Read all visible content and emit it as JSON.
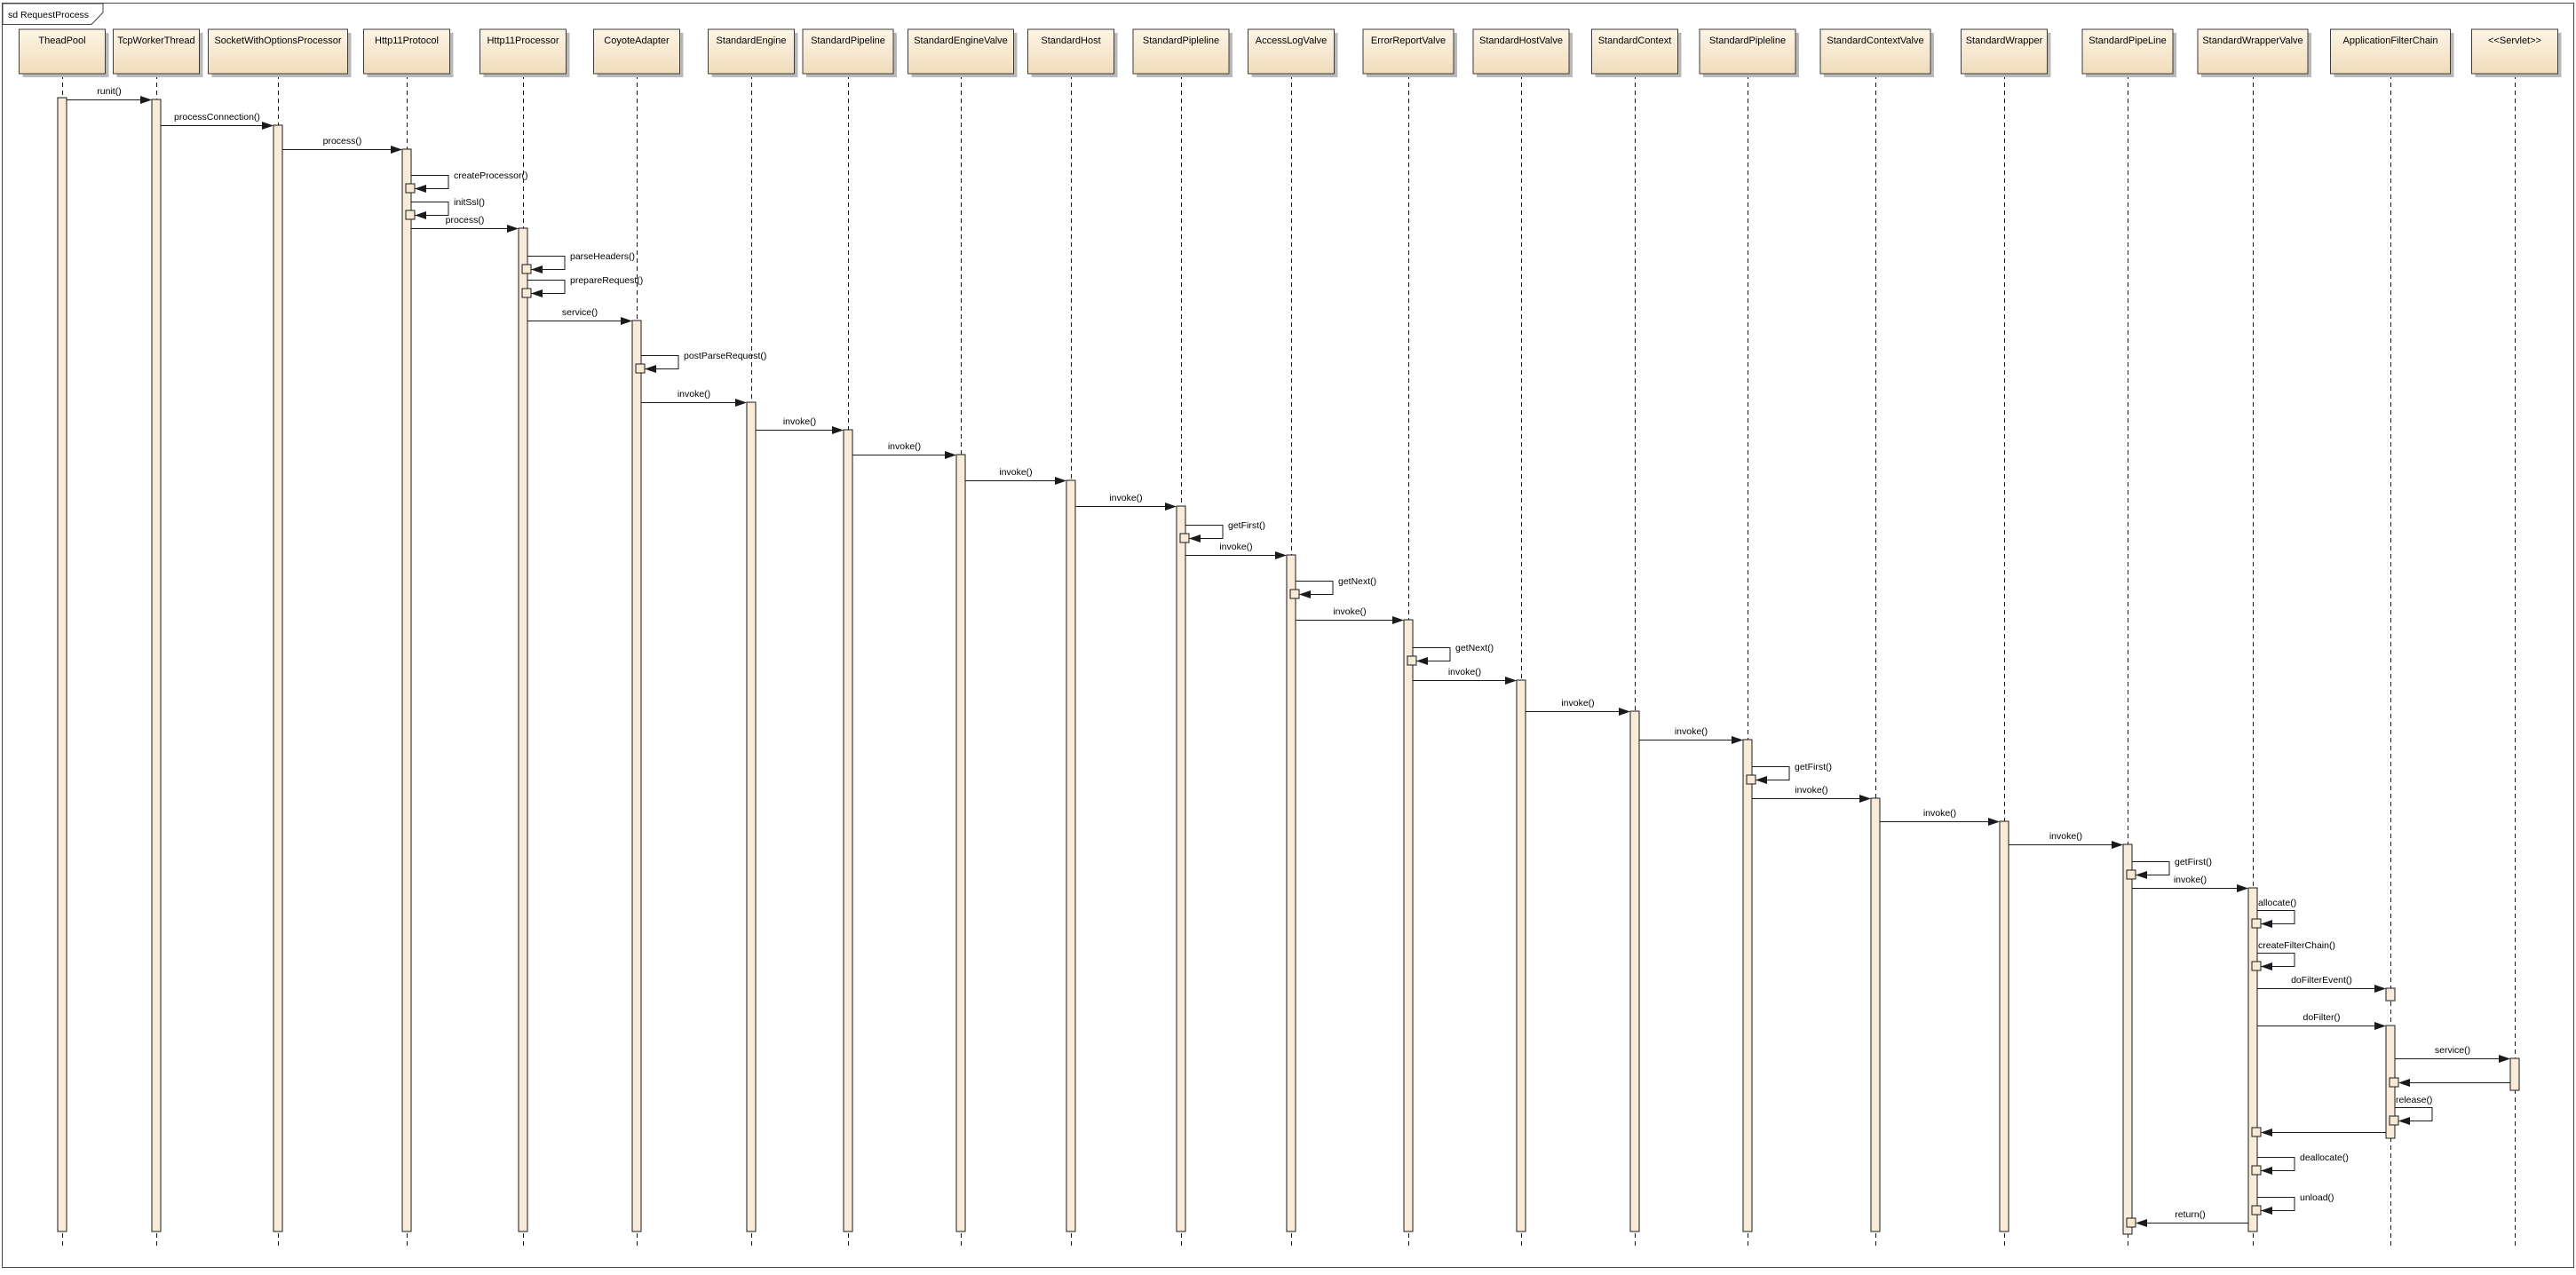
{
  "frame": {
    "label": "sd RequestProcess"
  },
  "diagram": {
    "type": "uml-sequence-diagram"
  },
  "colors": {
    "background": "#ffffff",
    "box_fill_top": "#fdf5e6",
    "box_fill_bottom": "#f0dcbb",
    "bar_fill": "#f8ecd8",
    "square_fill": "#f6ead6",
    "line": "#1a1a1a",
    "box_border": "#3c3c3c",
    "shadow": "#b9b9b9"
  },
  "lifelines": [
    {
      "name": "TheadPool"
    },
    {
      "name": "TcpWorkerThread"
    },
    {
      "name": "SocketWithOptionsProcessor"
    },
    {
      "name": "Http11Protocol"
    },
    {
      "name": "Http11Processor"
    },
    {
      "name": "CoyoteAdapter"
    },
    {
      "name": "StandardEngine"
    },
    {
      "name": "StandardPipeline"
    },
    {
      "name": "StandardEngineValve"
    },
    {
      "name": "StandardHost"
    },
    {
      "name": "StandardPipleline"
    },
    {
      "name": "AccessLogValve"
    },
    {
      "name": "ErrorReportValve"
    },
    {
      "name": "StandardHostValve"
    },
    {
      "name": "StandardContext"
    },
    {
      "name": "StandardPipleline"
    },
    {
      "name": "StandardContextValve"
    },
    {
      "name": "StandardWrapper"
    },
    {
      "name": "StandardPipeLine"
    },
    {
      "name": "StandardWrapperValve"
    },
    {
      "name": "ApplicationFilterChain"
    },
    {
      "name": "<<Servlet>>"
    }
  ],
  "messages": [
    {
      "label": "runit()",
      "from": 0,
      "to": 1,
      "kind": "call"
    },
    {
      "label": "processConnection()",
      "from": 1,
      "to": 2,
      "kind": "call"
    },
    {
      "label": "process()",
      "from": 2,
      "to": 3,
      "kind": "call"
    },
    {
      "label": "createProcessor()",
      "from": 3,
      "to": 3,
      "kind": "self"
    },
    {
      "label": "initSsl()",
      "from": 3,
      "to": 3,
      "kind": "self"
    },
    {
      "label": "process()",
      "from": 3,
      "to": 4,
      "kind": "call"
    },
    {
      "label": "parseHeaders()",
      "from": 4,
      "to": 4,
      "kind": "self"
    },
    {
      "label": "prepareRequest()",
      "from": 4,
      "to": 4,
      "kind": "self"
    },
    {
      "label": "service()",
      "from": 4,
      "to": 5,
      "kind": "call"
    },
    {
      "label": "postParseRequest()",
      "from": 5,
      "to": 5,
      "kind": "self"
    },
    {
      "label": "invoke()",
      "from": 5,
      "to": 6,
      "kind": "call"
    },
    {
      "label": "invoke()",
      "from": 6,
      "to": 7,
      "kind": "call"
    },
    {
      "label": "invoke()",
      "from": 7,
      "to": 8,
      "kind": "call"
    },
    {
      "label": "invoke()",
      "from": 8,
      "to": 9,
      "kind": "call"
    },
    {
      "label": "invoke()",
      "from": 9,
      "to": 10,
      "kind": "call"
    },
    {
      "label": "getFirst()",
      "from": 10,
      "to": 10,
      "kind": "self"
    },
    {
      "label": "invoke()",
      "from": 10,
      "to": 11,
      "kind": "call"
    },
    {
      "label": "getNext()",
      "from": 11,
      "to": 11,
      "kind": "self"
    },
    {
      "label": "invoke()",
      "from": 11,
      "to": 12,
      "kind": "call"
    },
    {
      "label": "getNext()",
      "from": 12,
      "to": 12,
      "kind": "self"
    },
    {
      "label": "invoke()",
      "from": 12,
      "to": 13,
      "kind": "call"
    },
    {
      "label": "invoke()",
      "from": 13,
      "to": 14,
      "kind": "call"
    },
    {
      "label": "invoke()",
      "from": 14,
      "to": 15,
      "kind": "call"
    },
    {
      "label": "getFirst()",
      "from": 15,
      "to": 15,
      "kind": "self"
    },
    {
      "label": "invoke()",
      "from": 15,
      "to": 16,
      "kind": "call"
    },
    {
      "label": "invoke()",
      "from": 16,
      "to": 17,
      "kind": "call"
    },
    {
      "label": "invoke()",
      "from": 17,
      "to": 18,
      "kind": "call"
    },
    {
      "label": "getFirst()",
      "from": 18,
      "to": 18,
      "kind": "self"
    },
    {
      "label": "invoke()",
      "from": 18,
      "to": 19,
      "kind": "call"
    },
    {
      "label": "allocate()",
      "from": 19,
      "to": 19,
      "kind": "self"
    },
    {
      "label": "createFilterChain()",
      "from": 19,
      "to": 19,
      "kind": "self"
    },
    {
      "label": "doFilterEvent()",
      "from": 19,
      "to": 20,
      "kind": "call"
    },
    {
      "label": "doFilter()",
      "from": 19,
      "to": 20,
      "kind": "call"
    },
    {
      "label": "service()",
      "from": 20,
      "to": 21,
      "kind": "call"
    },
    {
      "label": "",
      "from": 21,
      "to": 20,
      "kind": "return"
    },
    {
      "label": "release()",
      "from": 20,
      "to": 20,
      "kind": "self"
    },
    {
      "label": "",
      "from": 20,
      "to": 19,
      "kind": "return"
    },
    {
      "label": "deallocate()",
      "from": 19,
      "to": 19,
      "kind": "self"
    },
    {
      "label": "unload()",
      "from": 19,
      "to": 19,
      "kind": "self"
    },
    {
      "label": "return()",
      "from": 19,
      "to": 18,
      "kind": "return"
    }
  ]
}
